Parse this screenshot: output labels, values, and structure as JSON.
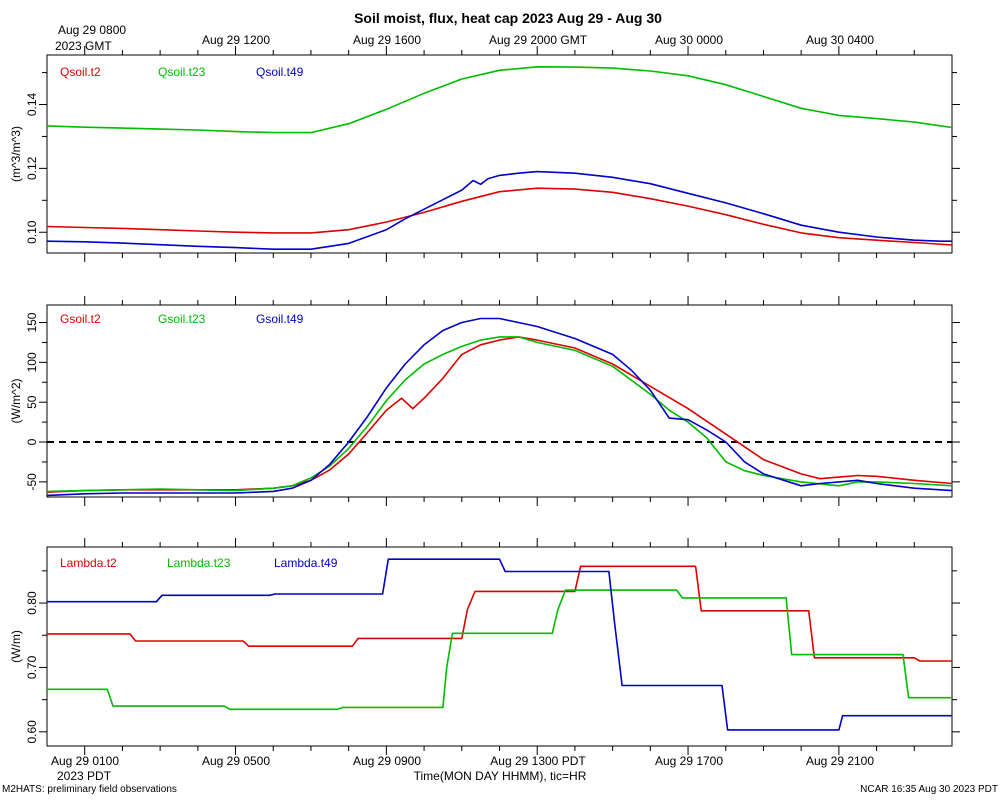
{
  "figure": {
    "title": "Soil moist, flux, heat cap 2023 Aug 29 - Aug 30",
    "top_axis": {
      "first_line1": "Aug 29 0800",
      "first_line2": "2023 GMT",
      "labels": [
        "Aug 29 1200",
        "Aug 29 1600",
        "Aug 29 2000 GMT",
        "Aug 30 0000",
        "Aug 30 0400"
      ]
    },
    "bottom_axis": {
      "labels": [
        "Aug 29 0100",
        "Aug 29 0500",
        "Aug 29 0900",
        "Aug 29 1300 PDT",
        "Aug 29 1700",
        "Aug 29 2100"
      ],
      "first_sub": "2023 PDT",
      "xlabel": "Time(MON DAY HHMM), tic=HR"
    },
    "footer_left": "M2HATS: preliminary field observations",
    "footer_right": "NCAR 16:35 Aug 30 2023 PDT"
  },
  "colors": {
    "t2": "#dd0000",
    "t23": "#00bb00",
    "t49": "#0000cc",
    "axis": "#000000"
  },
  "chart_data": [
    {
      "type": "line",
      "name": "soil-moisture",
      "ylabel": "(m^3/m^3)",
      "ylim": [
        0.0935,
        0.1555
      ],
      "yticks": [
        0.1,
        0.12,
        0.14
      ],
      "ytick_labels": [
        "0.10",
        "0.12",
        "0.14"
      ],
      "xlim": [
        0,
        24
      ],
      "x_unit": "hours after Aug 29 0000 PDT",
      "series": [
        {
          "name": "Qsoil.t2",
          "color_key": "t2",
          "x": [
            0,
            1,
            2,
            3,
            4,
            5,
            6,
            7,
            8,
            9,
            10,
            11,
            12,
            13,
            14,
            15,
            16,
            17,
            18,
            19,
            20,
            21,
            22,
            23,
            24
          ],
          "y": [
            0.1018,
            0.1015,
            0.1012,
            0.1008,
            0.1004,
            0.1,
            0.0998,
            0.0998,
            0.1008,
            0.1032,
            0.1062,
            0.1097,
            0.1127,
            0.1138,
            0.1135,
            0.1125,
            0.1105,
            0.1082,
            0.1055,
            0.1025,
            0.0998,
            0.0983,
            0.0975,
            0.0968,
            0.096
          ]
        },
        {
          "name": "Qsoil.t23",
          "color_key": "t23",
          "x": [
            0,
            1,
            2,
            3,
            4,
            5,
            6,
            7,
            8,
            9,
            10,
            11,
            12,
            13,
            14,
            15,
            16,
            17,
            18,
            19,
            20,
            21,
            22,
            23,
            24
          ],
          "y": [
            0.1333,
            0.1329,
            0.1326,
            0.1323,
            0.132,
            0.1315,
            0.1312,
            0.1312,
            0.134,
            0.1385,
            0.1435,
            0.148,
            0.1507,
            0.1518,
            0.1517,
            0.1514,
            0.1505,
            0.149,
            0.1462,
            0.1425,
            0.1388,
            0.1366,
            0.1356,
            0.1345,
            0.1328
          ]
        },
        {
          "name": "Qsoil.t49",
          "color_key": "t49",
          "x": [
            0,
            1,
            2,
            3,
            4,
            5,
            6,
            7,
            8,
            9,
            9.5,
            10,
            10.5,
            11,
            11.3,
            11.5,
            11.7,
            12,
            12.5,
            13,
            14,
            15,
            16,
            17,
            18,
            19,
            20,
            21,
            22,
            23,
            23.7,
            24
          ],
          "y": [
            0.0972,
            0.097,
            0.0966,
            0.0961,
            0.0956,
            0.0952,
            0.0947,
            0.0947,
            0.0965,
            0.1008,
            0.1042,
            0.1072,
            0.1102,
            0.1132,
            0.1162,
            0.115,
            0.1168,
            0.1178,
            0.1185,
            0.119,
            0.1185,
            0.1172,
            0.1152,
            0.1122,
            0.1092,
            0.1058,
            0.1022,
            0.1,
            0.0985,
            0.0975,
            0.0972,
            0.0972
          ]
        }
      ],
      "legend": [
        "Qsoil.t2",
        "Qsoil.t23",
        "Qsoil.t49"
      ]
    },
    {
      "type": "line",
      "name": "soil-heat-flux",
      "ylabel": "(W/m^2)",
      "ylim": [
        -69,
        172
      ],
      "yticks": [
        -50,
        0,
        50,
        100,
        150
      ],
      "ytick_labels": [
        "-50",
        "0",
        "50",
        "100",
        "150"
      ],
      "zero_line": 0,
      "xlim": [
        0,
        24
      ],
      "series": [
        {
          "name": "Gsoil.t2",
          "color_key": "t2",
          "x": [
            0,
            1,
            2,
            3,
            4,
            5,
            6,
            6.5,
            7,
            7.5,
            8,
            8.5,
            9,
            9.4,
            9.7,
            10,
            10.5,
            11,
            11.5,
            12,
            12.5,
            13,
            14,
            15,
            16,
            17,
            18,
            19,
            20,
            20.5,
            21,
            21.5,
            22,
            23,
            24
          ],
          "y": [
            -63,
            -61,
            -60,
            -60,
            -60,
            -60,
            -58,
            -55,
            -48,
            -35,
            -15,
            12,
            40,
            55,
            42,
            55,
            80,
            110,
            122,
            128,
            132,
            128,
            118,
            98,
            70,
            42,
            10,
            -22,
            -40,
            -46,
            -44,
            -42,
            -43,
            -48,
            -52
          ]
        },
        {
          "name": "Gsoil.t23",
          "color_key": "t23",
          "x": [
            0,
            1,
            2,
            3,
            4,
            5,
            6,
            6.5,
            7,
            7.5,
            8,
            8.5,
            9,
            9.5,
            10,
            10.5,
            11,
            11.5,
            12,
            12.5,
            13,
            14,
            15,
            16,
            16.5,
            17,
            17.5,
            18,
            18.5,
            19,
            20,
            21,
            21.5,
            22,
            23,
            24
          ],
          "y": [
            -62,
            -61,
            -60,
            -59,
            -60,
            -61,
            -58,
            -55,
            -45,
            -30,
            -8,
            20,
            52,
            78,
            98,
            110,
            120,
            128,
            132,
            132,
            125,
            115,
            95,
            60,
            40,
            25,
            5,
            -25,
            -36,
            -42,
            -50,
            -55,
            -50,
            -50,
            -52,
            -55
          ]
        },
        {
          "name": "Gsoil.t49",
          "color_key": "t49",
          "x": [
            0,
            1,
            2,
            3,
            4,
            5,
            6,
            6.5,
            7,
            7.5,
            8,
            8.5,
            9,
            9.5,
            10,
            10.5,
            11,
            11.5,
            12,
            12.5,
            13,
            14,
            15,
            15.5,
            16,
            16.5,
            17,
            17.5,
            18,
            18.5,
            19,
            20,
            20.5,
            21,
            21.5,
            22,
            23,
            24
          ],
          "y": [
            -67,
            -65,
            -64,
            -64,
            -64,
            -64,
            -62,
            -58,
            -48,
            -28,
            0,
            32,
            68,
            98,
            122,
            140,
            150,
            155,
            155,
            150,
            145,
            130,
            110,
            90,
            65,
            30,
            28,
            15,
            0,
            -25,
            -40,
            -55,
            -52,
            -50,
            -48,
            -52,
            -58,
            -61
          ]
        }
      ],
      "legend": [
        "Gsoil.t2",
        "Gsoil.t23",
        "Gsoil.t49"
      ]
    },
    {
      "type": "line",
      "name": "thermal-conductivity",
      "ylabel": "(W/m)",
      "ylim": [
        0.578,
        0.887
      ],
      "yticks": [
        0.6,
        0.7,
        0.8
      ],
      "ytick_labels": [
        "0.60",
        "0.70",
        "0.80"
      ],
      "xlim": [
        0,
        24
      ],
      "series": [
        {
          "name": "Lambda.t2",
          "color_key": "t2",
          "x": [
            0,
            2.2,
            2.35,
            5.2,
            5.35,
            8.1,
            8.25,
            11,
            11.15,
            11.35,
            14,
            14.15,
            17.2,
            17.35,
            20.2,
            20.35,
            23,
            23.15,
            24
          ],
          "y": [
            0.752,
            0.752,
            0.741,
            0.741,
            0.733,
            0.733,
            0.745,
            0.745,
            0.79,
            0.818,
            0.818,
            0.857,
            0.857,
            0.788,
            0.788,
            0.715,
            0.715,
            0.71,
            0.71
          ]
        },
        {
          "name": "Lambda.t23",
          "color_key": "t23",
          "x": [
            0,
            1.6,
            1.75,
            4.7,
            4.85,
            7.7,
            7.85,
            10.5,
            10.6,
            10.75,
            13.4,
            13.55,
            13.75,
            16.7,
            16.85,
            19.6,
            19.75,
            22.7,
            22.85,
            24
          ],
          "y": [
            0.666,
            0.666,
            0.64,
            0.64,
            0.635,
            0.635,
            0.638,
            0.638,
            0.7,
            0.753,
            0.753,
            0.79,
            0.82,
            0.82,
            0.808,
            0.808,
            0.72,
            0.72,
            0.653,
            0.653
          ]
        },
        {
          "name": "Lambda.t49",
          "color_key": "t49",
          "x": [
            0,
            2.9,
            3.05,
            5.9,
            6.05,
            8.9,
            9.05,
            12.0,
            12.15,
            14.9,
            15.05,
            15.25,
            17.9,
            18.05,
            21.0,
            21.1,
            24
          ],
          "y": [
            0.802,
            0.802,
            0.812,
            0.812,
            0.814,
            0.814,
            0.868,
            0.868,
            0.849,
            0.849,
            0.77,
            0.672,
            0.672,
            0.603,
            0.603,
            0.625,
            0.625
          ]
        }
      ],
      "legend": [
        "Lambda.t2",
        "Lambda.t23",
        "Lambda.t49"
      ]
    }
  ]
}
